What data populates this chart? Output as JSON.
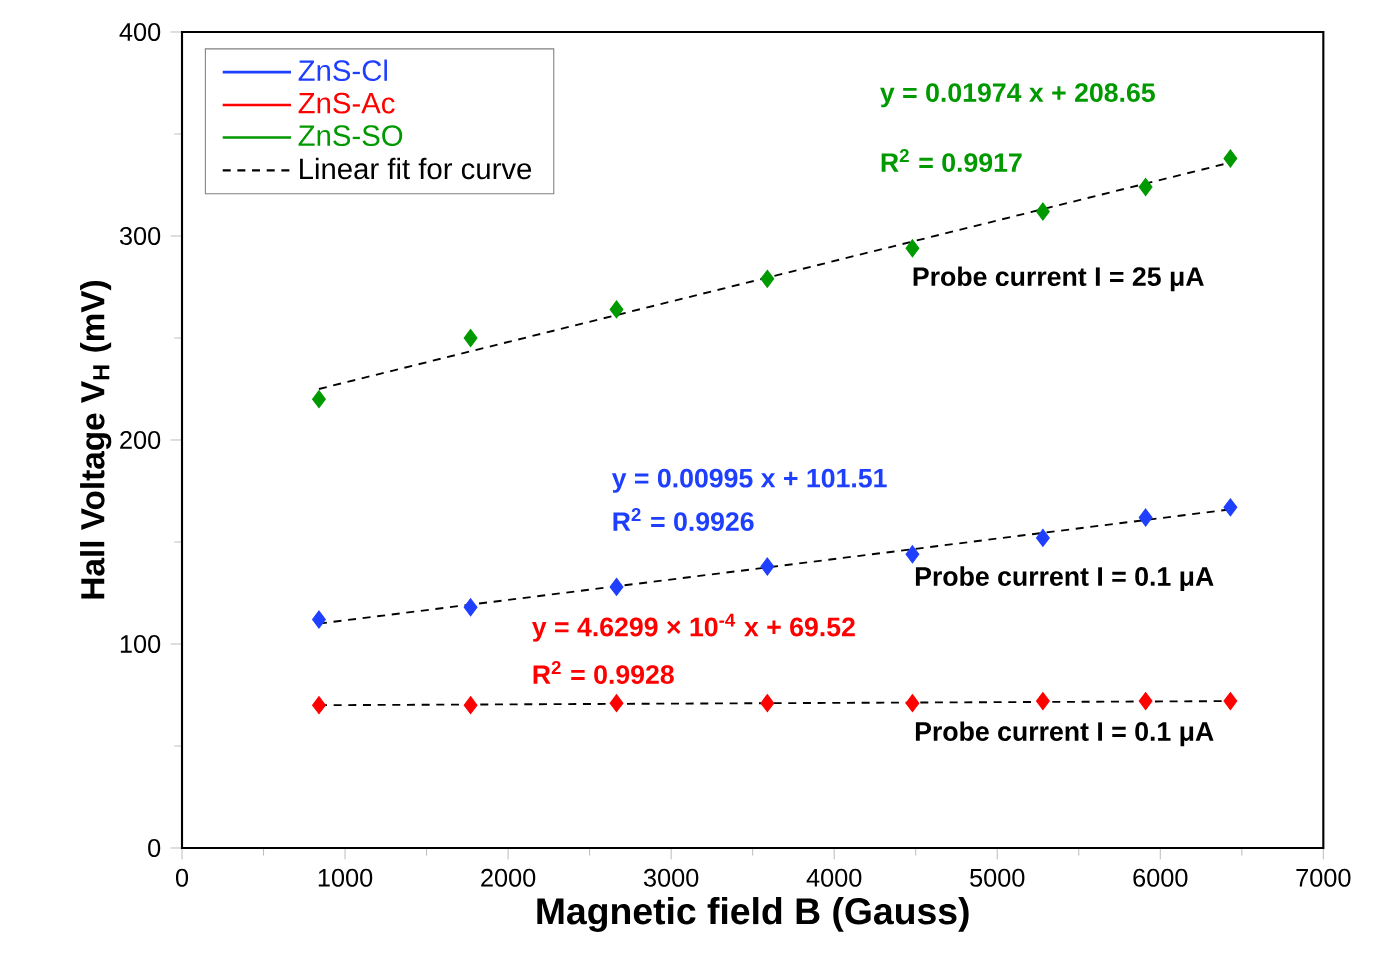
{
  "chart_data": {
    "type": "scatter",
    "xlabel": "Magnetic field B (Gauss)",
    "ylabel": "Hall Voltage V$_{H}$ (mV)",
    "xlim": [
      0,
      7000
    ],
    "xticks": [
      0,
      1000,
      2000,
      3000,
      4000,
      5000,
      6000,
      7000
    ],
    "ylim": [
      0,
      400
    ],
    "yticks": [
      0,
      100,
      200,
      300,
      400
    ],
    "grid": false,
    "legend": "top left",
    "marker": "diamond",
    "series": [
      {
        "name": "ZnS-Cl",
        "color": "#1f3fff",
        "x": [
          840,
          1770,
          2665,
          3590,
          4480,
          5280,
          5910,
          6430
        ],
        "values": [
          112,
          118,
          128,
          138,
          144,
          152,
          162,
          167
        ]
      },
      {
        "name": "ZnS-Ac",
        "color": "#ff0000",
        "x": [
          840,
          1770,
          2665,
          3590,
          4480,
          5280,
          5910,
          6430
        ],
        "values": [
          70,
          70,
          71,
          71,
          71,
          72,
          72,
          72
        ]
      },
      {
        "name": "ZnS-SO",
        "color": "#009900",
        "x": [
          840,
          1770,
          2665,
          3590,
          4480,
          5280,
          5910,
          6430
        ],
        "values": [
          220,
          250,
          264,
          279,
          294,
          312,
          324,
          338
        ]
      },
      {
        "type": "line",
        "name": "Linear fit for curve",
        "color": "#000000",
        "line_style": "dashed",
        "marker": "none",
        "x": [
          840,
          6430
        ],
        "values": [
          110,
          166
        ]
      },
      {
        "type": "line",
        "color": "#000000",
        "line_style": "dashed",
        "marker": "none",
        "x": [
          840,
          6430
        ],
        "values": [
          70,
          72
        ]
      },
      {
        "type": "line",
        "color": "#000000",
        "line_style": "dashed",
        "marker": "none",
        "x": [
          840,
          6430
        ],
        "values": [
          225,
          336
        ]
      }
    ],
    "annotations": [
      "y = 0.01974  x  + 208.65",
      "R$^{2}$ = 0.9917",
      "Probe current I = 25 μA",
      "y = 0.00995  x + 101.51",
      "R$^{2}$ = 0.9926",
      "Probe current I = 0.1 μA",
      "y = 4.6299 × 10$^{-4}$ x + 69.52",
      "R$^{2}$ = 0.9928",
      "Probe current I = 0.1 μA"
    ]
  }
}
